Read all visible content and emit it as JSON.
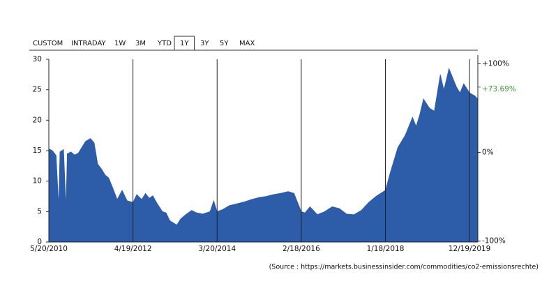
{
  "tabs": {
    "items": [
      "CUSTOM",
      "INTRADAY",
      "1W",
      "3M",
      "YTD",
      "1Y",
      "3Y",
      "5Y",
      "MAX"
    ],
    "selected": 5
  },
  "chart_data": {
    "type": "area",
    "color": "#2d5ca8",
    "x": [
      "5/20/2010",
      "6/20/2010",
      "7/20/2010",
      "8/10/2010",
      "8/20/2010",
      "9/20/2010",
      "10/10/2010",
      "10/20/2010",
      "11/20/2010",
      "12/20/2010",
      "1/20/2011",
      "3/20/2011",
      "5/1/2011",
      "6/1/2011",
      "7/1/2011",
      "8/1/2011",
      "9/1/2011",
      "10/1/2011",
      "11/1/2011",
      "12/10/2011",
      "1/20/2012",
      "3/1/2012",
      "4/19/2012",
      "5/20/2012",
      "7/1/2012",
      "8/1/2012",
      "9/1/2012",
      "10/1/2012",
      "11/1/2012",
      "12/20/2012",
      "1/20/2013",
      "2/20/2013",
      "4/19/2013",
      "5/20/2013",
      "7/1/2013",
      "8/20/2013",
      "10/1/2013",
      "11/20/2013",
      "1/20/2014",
      "2/20/2014",
      "3/20/2014",
      "5/1/2014",
      "7/1/2014",
      "9/1/2014",
      "11/1/2014",
      "1/1/2015",
      "3/1/2015",
      "5/1/2015",
      "7/1/2015",
      "9/1/2015",
      "11/1/2015",
      "12/20/2015",
      "2/18/2016",
      "3/20/2016",
      "5/1/2016",
      "7/1/2016",
      "9/1/2016",
      "11/1/2016",
      "1/1/2017",
      "3/1/2017",
      "5/1/2017",
      "7/1/2017",
      "9/1/2017",
      "11/1/2017",
      "1/18/2018",
      "3/1/2018",
      "5/1/2018",
      "7/1/2018",
      "9/1/2018",
      "10/1/2018",
      "11/1/2018",
      "12/1/2018",
      "1/20/2019",
      "3/1/2019",
      "4/20/2019",
      "5/20/2019",
      "7/1/2019",
      "8/1/2019",
      "9/1/2019",
      "10/1/2019",
      "11/1/2019",
      "12/19/2019",
      "2/1/2020",
      "2/26/2020"
    ],
    "values": [
      15.3,
      15.0,
      14.2,
      6,
      14.8,
      15.2,
      5.8,
      14.5,
      14.8,
      14.3,
      14.6,
      16.5,
      17.0,
      16.3,
      12.8,
      12.0,
      11.0,
      10.5,
      9.0,
      7.0,
      8.5,
      6.8,
      6.5,
      7.8,
      7.0,
      8.0,
      7.2,
      7.6,
      6.5,
      5.0,
      4.8,
      3.5,
      2.8,
      3.8,
      4.5,
      5.2,
      4.8,
      4.6,
      5.0,
      6.8,
      5.0,
      5.3,
      6.0,
      6.3,
      6.6,
      7.0,
      7.3,
      7.5,
      7.8,
      8.0,
      8.3,
      8.0,
      5.0,
      4.8,
      5.8,
      4.5,
      5.0,
      5.8,
      5.5,
      4.6,
      4.5,
      5.2,
      6.5,
      7.5,
      8.5,
      11.5,
      15.5,
      17.5,
      20.5,
      19.0,
      21.0,
      23.5,
      22.0,
      21.5,
      27.5,
      25.0,
      28.5,
      27.0,
      25.5,
      24.5,
      26.0,
      24.5,
      24.0,
      23.5
    ],
    "xlim": [
      "5/20/2010",
      "2/26/2020"
    ],
    "xticks": [
      "5/20/2010",
      "4/19/2012",
      "3/20/2014",
      "2/18/2016",
      "1/18/2018",
      "12/19/2019"
    ],
    "ylim": [
      0,
      30
    ],
    "yticks": [
      0,
      5,
      10,
      15,
      20,
      25,
      30
    ],
    "y2lim": [
      -101,
      105
    ],
    "y2ticks": [
      {
        "value": 100,
        "label": "+100%"
      },
      {
        "value": 0,
        "label": "0%"
      },
      {
        "value": -100,
        "label": "-100%"
      }
    ],
    "change": {
      "value": 73.69,
      "label": "+73.69%",
      "color": "#3c9a2e"
    },
    "grid": true
  },
  "source": "(Source : https://markets.businessinsider.com/commodities/co2-emissionsrechte)"
}
